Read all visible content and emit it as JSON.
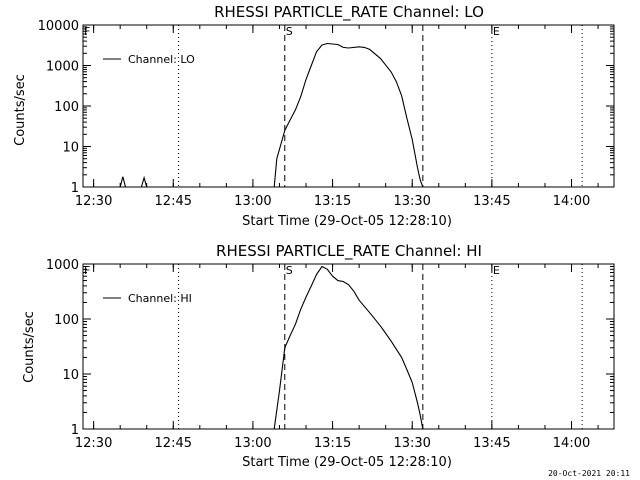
{
  "footer": {
    "timestamp": "20-Oct-2021 20:11"
  },
  "chart_data": [
    {
      "type": "line",
      "title": "RHESSI PARTICLE_RATE Channel: LO",
      "xlabel": "Start Time (29-Oct-05 12:28:10)",
      "ylabel": "Counts/sec",
      "y_scale": "log",
      "xlim": [
        "12:28",
        "14:08"
      ],
      "ylim": [
        1,
        10000
      ],
      "x_tick_labels": [
        "12:30",
        "12:45",
        "13:00",
        "13:15",
        "13:30",
        "13:45",
        "14:00"
      ],
      "y_tick_labels": [
        "1",
        "10",
        "100",
        "1000",
        "10000"
      ],
      "legend": {
        "entries": [
          "Channel: LO"
        ],
        "placement": "top-left"
      },
      "markers": [
        {
          "label": "F",
          "time": "12:28",
          "style": "dotted"
        },
        {
          "label": "",
          "time": "12:46",
          "style": "dotted"
        },
        {
          "label": "S",
          "time": "13:06",
          "style": "dashed"
        },
        {
          "label": "",
          "time": "13:32",
          "style": "dashed"
        },
        {
          "label": "E",
          "time": "13:45",
          "style": "dotted"
        },
        {
          "label": "",
          "time": "14:02",
          "style": "dotted"
        }
      ],
      "series": [
        {
          "name": "Channel: LO",
          "x": [
            "12:28",
            "12:35",
            "12:35.5",
            "12:36",
            "12:39",
            "12:39.5",
            "12:40",
            "13:04",
            "13:04.5",
            "13:06",
            "13:07",
            "13:08",
            "13:09",
            "13:10",
            "13:11",
            "13:12",
            "13:13",
            "13:14",
            "13:16",
            "13:17",
            "13:18",
            "13:20",
            "13:21",
            "13:22",
            "13:24",
            "13:26",
            "13:27",
            "13:28",
            "13:29",
            "13:30",
            "13:31",
            "13:31.5",
            "13:32"
          ],
          "y": [
            1,
            1,
            1.8,
            1,
            1,
            1.7,
            1,
            1,
            5,
            25,
            45,
            80,
            170,
            450,
            1000,
            2200,
            3200,
            3500,
            3300,
            2800,
            2700,
            2900,
            2800,
            2500,
            1500,
            700,
            400,
            180,
            50,
            15,
            3,
            1.5,
            1
          ]
        }
      ]
    },
    {
      "type": "line",
      "title": "RHESSI PARTICLE_RATE Channel: HI",
      "xlabel": "Start Time (29-Oct-05 12:28:10)",
      "ylabel": "Counts/sec",
      "y_scale": "log",
      "xlim": [
        "12:28",
        "14:08"
      ],
      "ylim": [
        1,
        1000
      ],
      "x_tick_labels": [
        "12:30",
        "12:45",
        "13:00",
        "13:15",
        "13:30",
        "13:45",
        "14:00"
      ],
      "y_tick_labels": [
        "1",
        "10",
        "100",
        "1000"
      ],
      "legend": {
        "entries": [
          "Channel: HI"
        ],
        "placement": "top-left"
      },
      "markers": [
        {
          "label": "F",
          "time": "12:28",
          "style": "dotted"
        },
        {
          "label": "",
          "time": "12:46",
          "style": "dotted"
        },
        {
          "label": "S",
          "time": "13:06",
          "style": "dashed"
        },
        {
          "label": "",
          "time": "13:32",
          "style": "dashed"
        },
        {
          "label": "E",
          "time": "13:45",
          "style": "dotted"
        },
        {
          "label": "",
          "time": "14:02",
          "style": "dotted"
        }
      ],
      "series": [
        {
          "name": "Channel: HI",
          "x": [
            "13:04",
            "13:05",
            "13:06",
            "13:07",
            "13:08",
            "13:09",
            "13:10",
            "13:11",
            "13:12",
            "13:13",
            "13:14",
            "13:15",
            "13:16",
            "13:17",
            "13:18",
            "13:19",
            "13:20",
            "13:22",
            "13:24",
            "13:26",
            "13:28",
            "13:29",
            "13:30",
            "13:31",
            "13:31.5",
            "13:32"
          ],
          "y": [
            1,
            5,
            30,
            50,
            80,
            150,
            250,
            400,
            650,
            900,
            800,
            600,
            500,
            480,
            420,
            320,
            220,
            130,
            75,
            40,
            20,
            12,
            7,
            3,
            1.8,
            1
          ]
        }
      ]
    }
  ]
}
